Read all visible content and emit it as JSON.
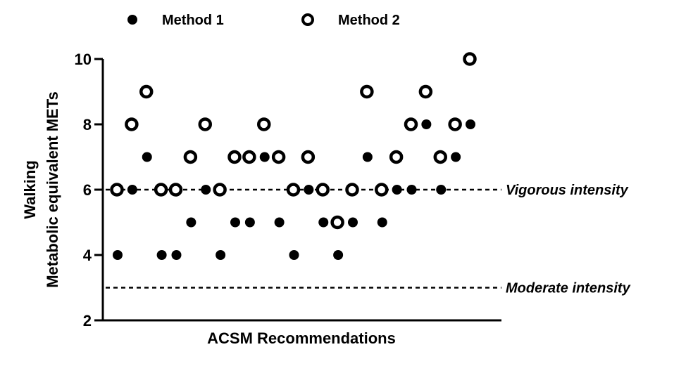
{
  "chart_data": {
    "type": "scatter",
    "title": "",
    "xlabel": "ACSM Recommendations",
    "ylabel_lines": [
      "Walking",
      "Metabolic equivalent METs"
    ],
    "ylim": [
      2,
      10
    ],
    "yticks": [
      2,
      4,
      6,
      8,
      10
    ],
    "grid": false,
    "legend_position": "top",
    "series": [
      {
        "name": "Method 1",
        "marker": "filled-circle",
        "color": "#000000",
        "x": [
          1,
          2,
          3,
          4,
          5,
          6,
          7,
          8,
          9,
          10,
          11,
          12,
          13,
          14,
          15,
          16,
          17,
          18,
          19,
          20,
          21,
          22,
          23,
          24,
          25
        ],
        "y": [
          4,
          6,
          7,
          4,
          4,
          5,
          6,
          4,
          5,
          5,
          7,
          5,
          4,
          6,
          5,
          4,
          5,
          7,
          5,
          6,
          6,
          8,
          6,
          7,
          8
        ]
      },
      {
        "name": "Method 2",
        "marker": "open-circle",
        "color": "#000000",
        "x": [
          1,
          2,
          3,
          4,
          5,
          6,
          7,
          8,
          9,
          10,
          11,
          12,
          13,
          14,
          15,
          16,
          17,
          18,
          19,
          20,
          21,
          22,
          23,
          24,
          25
        ],
        "y": [
          6,
          8,
          9,
          6,
          6,
          7,
          8,
          6,
          7,
          7,
          8,
          7,
          6,
          7,
          6,
          5,
          6,
          9,
          6,
          7,
          8,
          9,
          7,
          8,
          10
        ]
      }
    ],
    "reference_lines": [
      {
        "y": 6,
        "label": "Vigorous intensity",
        "style": "dashed"
      },
      {
        "y": 3,
        "label": "Moderate intensity",
        "style": "dashed"
      }
    ]
  }
}
